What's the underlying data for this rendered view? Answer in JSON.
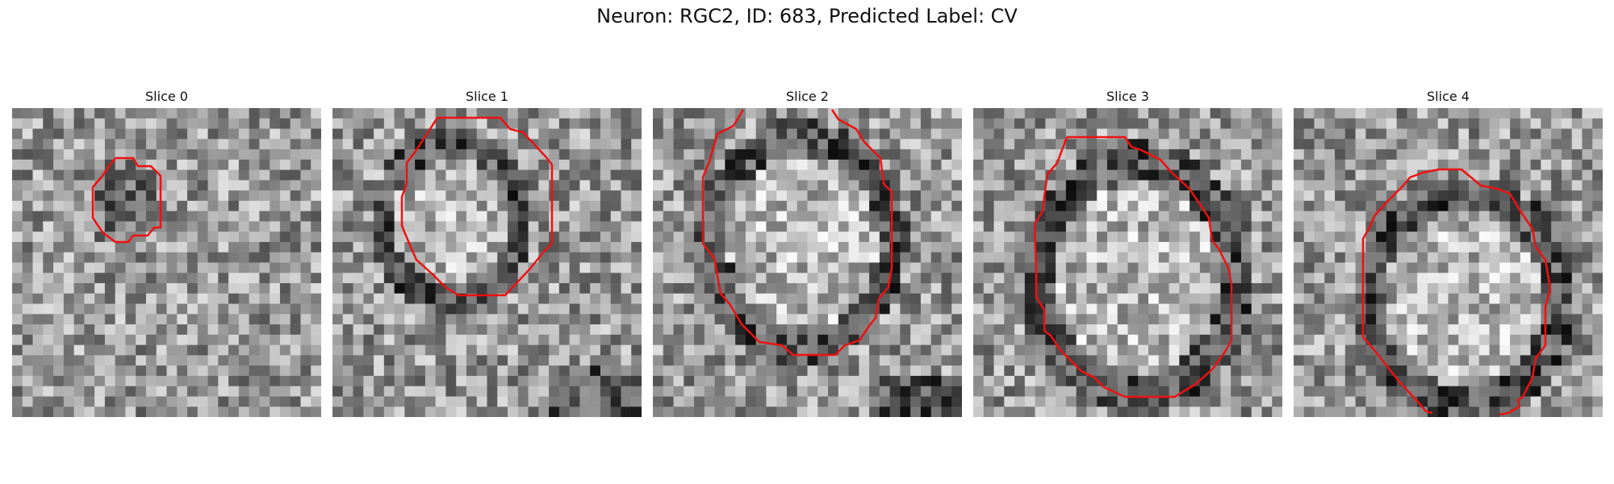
{
  "figure": {
    "title": "Neuron: RGC2, ID: 683, Predicted Label: CV",
    "contour_color": "#ee1111"
  },
  "panels": [
    {
      "title": "Slice 0"
    },
    {
      "title": "Slice 1"
    },
    {
      "title": "Slice 2"
    },
    {
      "title": "Slice 3"
    },
    {
      "title": "Slice 4"
    }
  ]
}
